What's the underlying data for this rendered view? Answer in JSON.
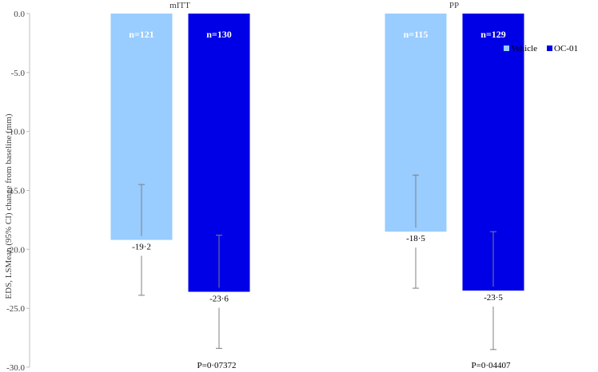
{
  "chart_data": {
    "type": "bar",
    "ylabel": "EDS, LSMean (95% CI) change from baseline (mm)",
    "ylim": [
      -30,
      0
    ],
    "yticks": [
      0,
      -5,
      -10,
      -15,
      -20,
      -25,
      -30
    ],
    "ytick_labels": [
      "0.0",
      "-5.0",
      "-10.0",
      "-15.0",
      "-20.0",
      "-25.0",
      "-30.0"
    ],
    "categories": [
      "mITT",
      "PP"
    ],
    "legend_position": "right",
    "series": [
      {
        "name": "Vehicle",
        "color": "#99ccff",
        "values": [
          -19.2,
          -18.5
        ],
        "value_labels": [
          "-19·2",
          "-18·5"
        ],
        "ci_low": [
          -23.9,
          -23.3
        ],
        "ci_high": [
          -14.5,
          -13.7
        ],
        "n_labels": [
          "n=121",
          "n=115"
        ]
      },
      {
        "name": "OC-01",
        "color": "#0000e6",
        "values": [
          -23.6,
          -23.5
        ],
        "value_labels": [
          "-23·6",
          "-23·5"
        ],
        "ci_low": [
          -28.4,
          -28.5
        ],
        "ci_high": [
          -18.8,
          -18.5
        ],
        "n_labels": [
          "n=130",
          "n=129"
        ]
      }
    ],
    "p_values": [
      "P=0·07372",
      "P=0·04407"
    ],
    "error_bar_color": "#808080"
  }
}
